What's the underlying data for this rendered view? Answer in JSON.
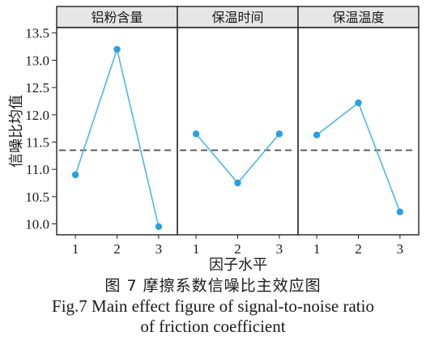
{
  "chart_data": {
    "type": "line",
    "ylabel": "信噪比均值",
    "xlabel": "因子水平",
    "ylim": [
      9.8,
      13.6
    ],
    "yticks": [
      "10.0",
      "10.5",
      "11.0",
      "11.5",
      "12.0",
      "12.5",
      "13.0",
      "13.5"
    ],
    "xticks": [
      "1",
      "2",
      "3"
    ],
    "reference_line": 11.35,
    "colors": {
      "line": "#4db8e8",
      "marker": "#2aa0e0",
      "reference": "#555555",
      "frame": "#222222",
      "panel_header": "#e6e6e6"
    },
    "panels": [
      {
        "title": "铝粉含量",
        "x": [
          1,
          2,
          3
        ],
        "y": [
          10.9,
          13.2,
          9.95
        ]
      },
      {
        "title": "保温时间",
        "x": [
          1,
          2,
          3
        ],
        "y": [
          11.65,
          10.75,
          11.65
        ]
      },
      {
        "title": "保温温度",
        "x": [
          1,
          2,
          3
        ],
        "y": [
          11.63,
          12.22,
          10.22
        ]
      }
    ]
  },
  "caption": {
    "zh": "图 7  摩擦系数信噪比主效应图",
    "en_line1": "Fig.7  Main effect figure of signal-to-noise ratio",
    "en_line2": "of friction coefficient"
  }
}
